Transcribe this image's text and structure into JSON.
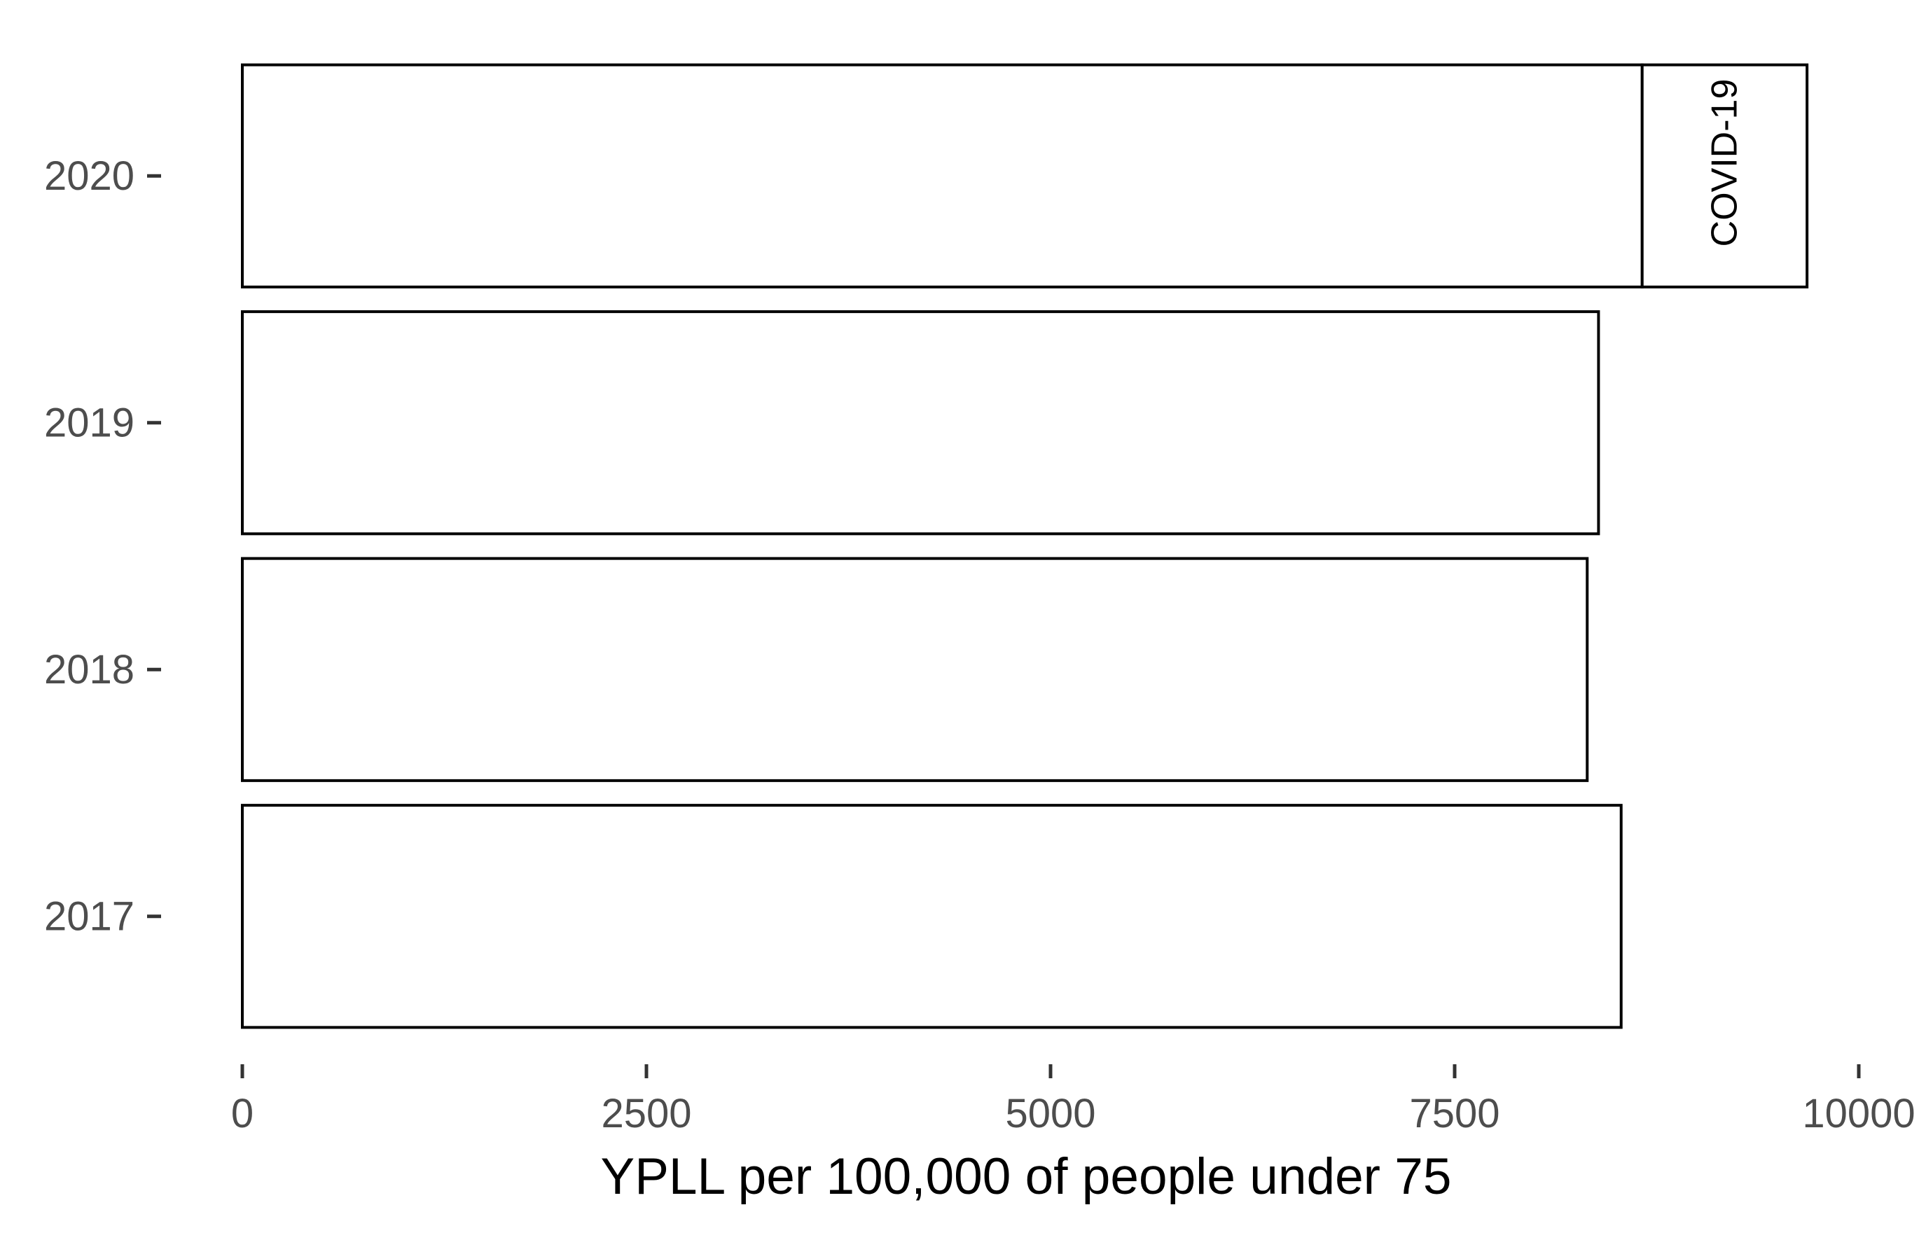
{
  "chart_data": {
    "type": "bar",
    "orientation": "horizontal",
    "stacked": true,
    "categories": [
      "2017",
      "2018",
      "2019",
      "2020"
    ],
    "series": [
      {
        "values": [
          8530,
          8320,
          8390,
          8660
        ]
      },
      {
        "name": "COVID-19",
        "values": [
          0,
          0,
          0,
          1020
        ]
      }
    ],
    "title": "",
    "xlabel": "YPLL per 100,000 of people under 75",
    "ylabel": "",
    "xlim": [
      0,
      10000
    ],
    "x_ticks": [
      "0",
      "2500",
      "5000",
      "7500",
      "10000"
    ],
    "tick_values": [
      0,
      2500,
      5000,
      7500,
      10000
    ],
    "grid": false,
    "legend": "none"
  }
}
